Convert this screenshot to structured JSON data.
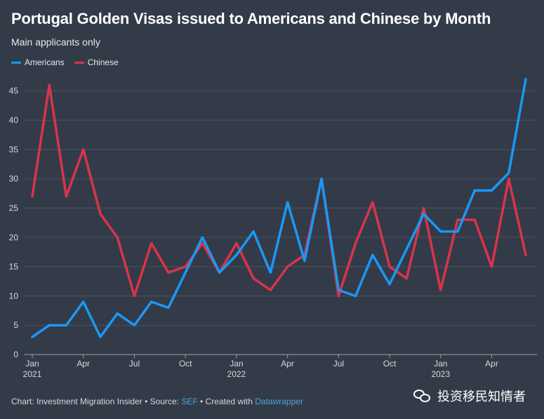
{
  "header": {
    "title": "Portugal Golden Visas issued to Americans and Chinese by Month",
    "subtitle": "Main applicants only"
  },
  "footer": {
    "prefix": "Chart: Investment Migration Insider • Source: ",
    "source_link": "SEF",
    "middle": " • Created with ",
    "tool_link": "Datawrapper"
  },
  "watermark": {
    "text": "投资移民知情者",
    "icon": "wechat-icon"
  },
  "colors": {
    "background": "#333b49",
    "americans": "#1a98f5",
    "chinese": "#d9344a",
    "grid": "#4b5363",
    "link": "#4da6d9"
  },
  "chart_data": {
    "type": "line",
    "x": [
      "Jan 2021",
      "Feb 2021",
      "Mar 2021",
      "Apr 2021",
      "May 2021",
      "Jun 2021",
      "Jul 2021",
      "Aug 2021",
      "Sep 2021",
      "Oct 2021",
      "Nov 2021",
      "Dec 2021",
      "Jan 2022",
      "Feb 2022",
      "Mar 2022",
      "Apr 2022",
      "May 2022",
      "Jun 2022",
      "Jul 2022",
      "Aug 2022",
      "Sep 2022",
      "Oct 2022",
      "Nov 2022",
      "Dec 2022",
      "Jan 2023",
      "Feb 2023",
      "Mar 2023",
      "Apr 2023",
      "May 2023",
      "Jun 2023"
    ],
    "series": [
      {
        "name": "Americans",
        "color": "#1a98f5",
        "values": [
          3,
          5,
          5,
          9,
          3,
          7,
          5,
          9,
          8,
          14,
          20,
          14,
          17,
          21,
          14,
          26,
          16,
          30,
          11,
          10,
          17,
          12,
          18,
          24,
          21,
          21,
          28,
          28,
          31,
          47
        ]
      },
      {
        "name": "Chinese",
        "color": "#d9344a",
        "values": [
          27,
          46,
          27,
          35,
          24,
          20,
          10,
          19,
          14,
          15,
          19,
          14,
          19,
          13,
          11,
          15,
          17,
          30,
          10,
          19,
          26,
          15,
          13,
          25,
          11,
          23,
          23,
          15,
          30,
          17
        ]
      }
    ],
    "x_ticks": [
      {
        "index": 0,
        "label": "Jan",
        "year": "2021"
      },
      {
        "index": 3,
        "label": "Apr",
        "year": ""
      },
      {
        "index": 6,
        "label": "Jul",
        "year": ""
      },
      {
        "index": 9,
        "label": "Oct",
        "year": ""
      },
      {
        "index": 12,
        "label": "Jan",
        "year": "2022"
      },
      {
        "index": 15,
        "label": "Apr",
        "year": ""
      },
      {
        "index": 18,
        "label": "Jul",
        "year": ""
      },
      {
        "index": 21,
        "label": "Oct",
        "year": ""
      },
      {
        "index": 24,
        "label": "Jan",
        "year": "2023"
      },
      {
        "index": 27,
        "label": "Apr",
        "year": ""
      }
    ],
    "y_ticks": [
      0,
      5,
      10,
      15,
      20,
      25,
      30,
      35,
      40,
      45
    ],
    "ylim": [
      0,
      47
    ],
    "grid": true,
    "legend_position": "top-left"
  }
}
